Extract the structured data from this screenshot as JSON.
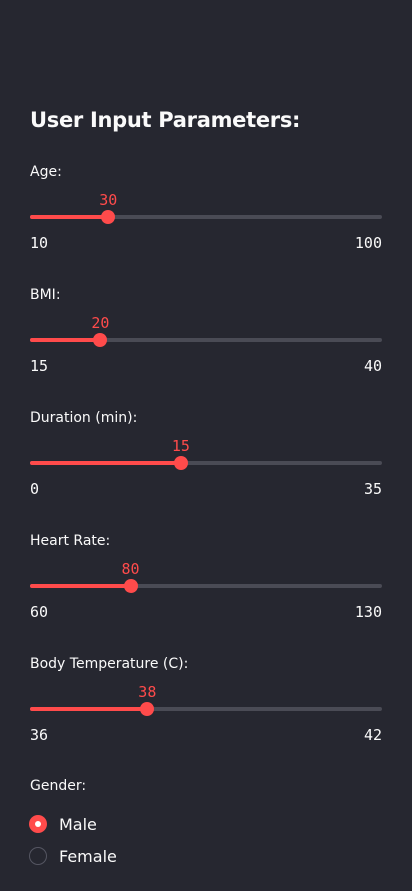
{
  "panel": {
    "title": "User Input Parameters:"
  },
  "sliders": [
    {
      "label": "Age:",
      "value": 30,
      "min": 10,
      "max": 100
    },
    {
      "label": "BMI:",
      "value": 20,
      "min": 15,
      "max": 40
    },
    {
      "label": "Duration (min):",
      "value": 15,
      "min": 0,
      "max": 35
    },
    {
      "label": "Heart Rate:",
      "value": 80,
      "min": 60,
      "max": 130
    },
    {
      "label": "Body Temperature (C):",
      "value": 38,
      "min": 36,
      "max": 42
    }
  ],
  "gender": {
    "label": "Gender:",
    "options": [
      "Male",
      "Female"
    ],
    "selected": "Male"
  },
  "colors": {
    "background": "#262730",
    "accent": "#ff4b4b",
    "track": "#4a4b55",
    "text": "#fafafa"
  }
}
